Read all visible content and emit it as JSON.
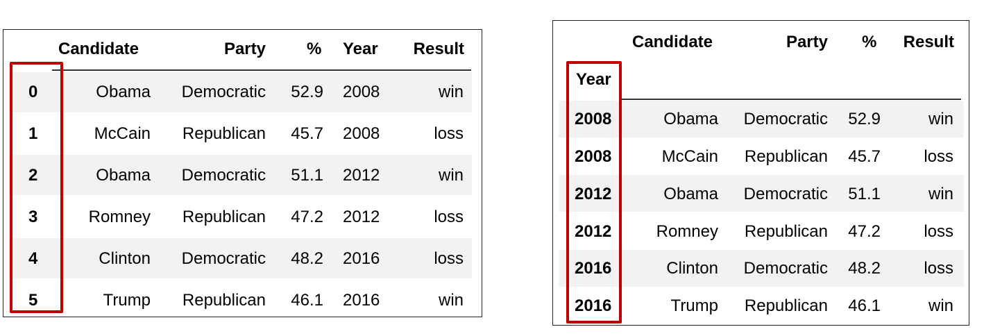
{
  "left_table": {
    "columns": [
      "Candidate",
      "Party",
      "%",
      "Year",
      "Result"
    ],
    "rows": [
      {
        "index": "0",
        "candidate": "Obama",
        "party": "Democratic",
        "pct": "52.9",
        "year": "2008",
        "result": "win"
      },
      {
        "index": "1",
        "candidate": "McCain",
        "party": "Republican",
        "pct": "45.7",
        "year": "2008",
        "result": "loss"
      },
      {
        "index": "2",
        "candidate": "Obama",
        "party": "Democratic",
        "pct": "51.1",
        "year": "2012",
        "result": "win"
      },
      {
        "index": "3",
        "candidate": "Romney",
        "party": "Republican",
        "pct": "47.2",
        "year": "2012",
        "result": "loss"
      },
      {
        "index": "4",
        "candidate": "Clinton",
        "party": "Democratic",
        "pct": "48.2",
        "year": "2016",
        "result": "loss"
      },
      {
        "index": "5",
        "candidate": "Trump",
        "party": "Republican",
        "pct": "46.1",
        "year": "2016",
        "result": "win"
      }
    ]
  },
  "right_table": {
    "columns": [
      "Candidate",
      "Party",
      "%",
      "Result"
    ],
    "index_name": "Year",
    "rows": [
      {
        "index": "2008",
        "candidate": "Obama",
        "party": "Democratic",
        "pct": "52.9",
        "result": "win"
      },
      {
        "index": "2008",
        "candidate": "McCain",
        "party": "Republican",
        "pct": "45.7",
        "result": "loss"
      },
      {
        "index": "2012",
        "candidate": "Obama",
        "party": "Democratic",
        "pct": "51.1",
        "result": "win"
      },
      {
        "index": "2012",
        "candidate": "Romney",
        "party": "Republican",
        "pct": "47.2",
        "result": "loss"
      },
      {
        "index": "2016",
        "candidate": "Clinton",
        "party": "Democratic",
        "pct": "48.2",
        "result": "loss"
      },
      {
        "index": "2016",
        "candidate": "Trump",
        "party": "Republican",
        "pct": "46.1",
        "result": "win"
      }
    ]
  },
  "colors": {
    "highlight_box": "#c00000",
    "row_stripe": "#f2f2f2"
  }
}
